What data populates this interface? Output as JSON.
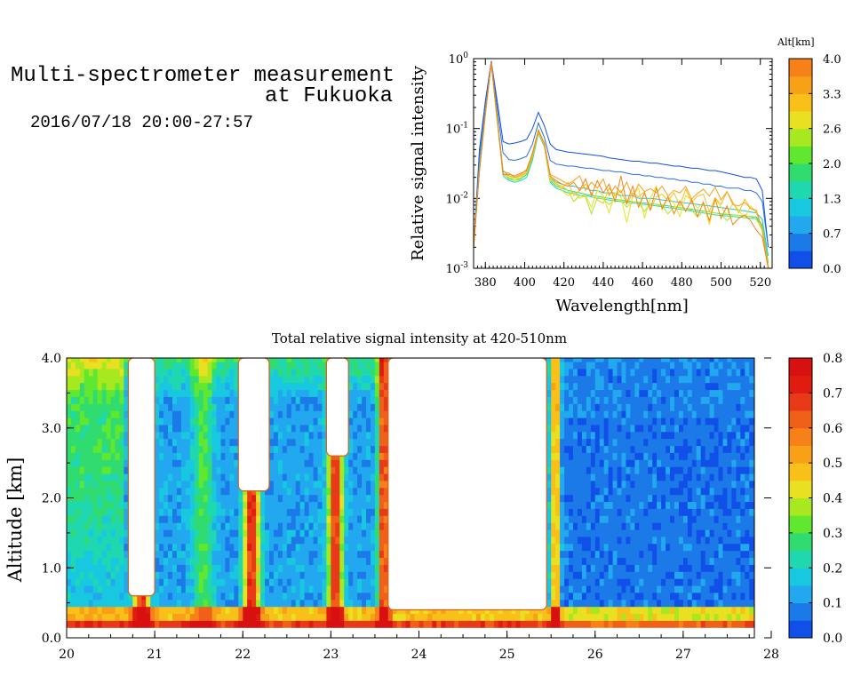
{
  "header": {
    "line1": "Multi-spectrometer measurement",
    "line2": "at Fukuoka",
    "line3": "2016/07/18 20:00-27:57"
  },
  "chart_data": [
    {
      "type": "line",
      "xlabel": "Wavelength[nm]",
      "ylabel": "Relative signal intensity",
      "yscale": "log",
      "xlim": [
        374,
        526
      ],
      "ylim": [
        0.001,
        1
      ],
      "x_ticks": [
        "380",
        "400",
        "420",
        "440",
        "460",
        "480",
        "500",
        "520"
      ],
      "y_ticks": [
        {
          "base": "10",
          "exp": "-3"
        },
        {
          "base": "10",
          "exp": "-2"
        },
        {
          "base": "10",
          "exp": "-1"
        },
        {
          "base": "10",
          "exp": "0"
        }
      ],
      "colorbar": {
        "title": "Alt[km]",
        "tick_labels": [
          "0.0",
          "0.7",
          "1.3",
          "2.0",
          "2.6",
          "3.3",
          "4.0"
        ],
        "colors": [
          "#1050e8",
          "#1c7ae8",
          "#22a8ee",
          "#18c8e0",
          "#20d8b0",
          "#30dc70",
          "#60e830",
          "#a8e820",
          "#e8e020",
          "#f8c018",
          "#f8a018",
          "#f88018"
        ]
      },
      "x": [
        374,
        377,
        380,
        383,
        386,
        389,
        392,
        395,
        398,
        401,
        404,
        407,
        410,
        413,
        416,
        419,
        422,
        425,
        428,
        431,
        434,
        437,
        440,
        443,
        446,
        449,
        452,
        455,
        458,
        461,
        464,
        467,
        470,
        473,
        476,
        479,
        482,
        485,
        488,
        491,
        494,
        497,
        500,
        503,
        506,
        509,
        512,
        515,
        518,
        521,
        524
      ],
      "series": [
        {
          "altitude": 0.2,
          "color": "#1050e8",
          "values": [
            0.002,
            0.05,
            0.25,
            0.92,
            0.25,
            0.065,
            0.06,
            0.062,
            0.065,
            0.07,
            0.1,
            0.17,
            0.11,
            0.06,
            0.05,
            0.048,
            0.046,
            0.045,
            0.044,
            0.043,
            0.042,
            0.041,
            0.04,
            0.038,
            0.037,
            0.036,
            0.035,
            0.034,
            0.034,
            0.033,
            0.032,
            0.032,
            0.031,
            0.03,
            0.029,
            0.029,
            0.028,
            0.027,
            0.027,
            0.026,
            0.025,
            0.025,
            0.024,
            0.023,
            0.022,
            0.021,
            0.02,
            0.02,
            0.019,
            0.013,
            0.002
          ]
        },
        {
          "altitude": 0.5,
          "color": "#2a6ee0",
          "values": [
            0.002,
            0.04,
            0.2,
            0.9,
            0.2,
            0.045,
            0.036,
            0.035,
            0.037,
            0.04,
            0.06,
            0.12,
            0.075,
            0.035,
            0.031,
            0.03,
            0.029,
            0.029,
            0.028,
            0.027,
            0.027,
            0.026,
            0.025,
            0.025,
            0.024,
            0.024,
            0.023,
            0.022,
            0.022,
            0.021,
            0.021,
            0.02,
            0.02,
            0.019,
            0.019,
            0.018,
            0.018,
            0.017,
            0.017,
            0.016,
            0.016,
            0.015,
            0.015,
            0.014,
            0.014,
            0.014,
            0.013,
            0.013,
            0.012,
            0.009,
            0.002
          ]
        },
        {
          "altitude": 1.0,
          "color": "#18c8e0",
          "values": [
            0.002,
            0.03,
            0.18,
            0.88,
            0.15,
            0.025,
            0.021,
            0.02,
            0.021,
            0.024,
            0.04,
            0.095,
            0.06,
            0.02,
            0.017,
            0.016,
            0.015,
            0.015,
            0.014,
            0.014,
            0.013,
            0.013,
            0.012,
            0.012,
            0.012,
            0.011,
            0.011,
            0.011,
            0.01,
            0.01,
            0.01,
            0.0098,
            0.0095,
            0.0093,
            0.009,
            0.0088,
            0.0086,
            0.0084,
            0.0082,
            0.008,
            0.0078,
            0.0076,
            0.0074,
            0.0072,
            0.007,
            0.0068,
            0.0066,
            0.0064,
            0.0062,
            0.005,
            0.0015
          ]
        },
        {
          "altitude": 1.5,
          "color": "#20d8b0",
          "values": [
            0.002,
            0.025,
            0.16,
            0.86,
            0.13,
            0.021,
            0.018,
            0.017,
            0.018,
            0.02,
            0.035,
            0.085,
            0.055,
            0.017,
            0.014,
            0.013,
            0.012,
            0.012,
            0.011,
            0.011,
            0.0105,
            0.01,
            0.0098,
            0.0095,
            0.0092,
            0.009,
            0.0088,
            0.0086,
            0.0084,
            0.0082,
            0.008,
            0.0078,
            0.0076,
            0.0074,
            0.0072,
            0.007,
            0.0068,
            0.0066,
            0.0064,
            0.0062,
            0.006,
            0.0058,
            0.0057,
            0.0056,
            0.0055,
            0.0054,
            0.0053,
            0.0052,
            0.0051,
            0.004,
            0.0012
          ]
        },
        {
          "altitude": 2.0,
          "color": "#30dc70",
          "values": [
            0.002,
            0.025,
            0.16,
            0.86,
            0.13,
            0.023,
            0.019,
            0.018,
            0.019,
            0.022,
            0.038,
            0.088,
            0.057,
            0.018,
            0.015,
            0.014,
            0.013,
            0.0125,
            0.012,
            0.0115,
            0.011,
            0.0107,
            0.0103,
            0.01,
            0.0097,
            0.0095,
            0.0092,
            0.009,
            0.0088,
            0.0086,
            0.0084,
            0.0082,
            0.008,
            0.0078,
            0.0076,
            0.0074,
            0.0072,
            0.007,
            0.0068,
            0.0066,
            0.0064,
            0.0062,
            0.006,
            0.0059,
            0.0058,
            0.0057,
            0.0056,
            0.0055,
            0.0054,
            0.0042,
            0.0012
          ]
        },
        {
          "altitude": 2.6,
          "color": "#a8e820",
          "values": [
            0.002,
            0.025,
            0.16,
            0.86,
            0.13,
            0.022,
            0.02,
            0.019,
            0.02,
            0.023,
            0.04,
            0.09,
            0.058,
            0.019,
            0.016,
            0.015,
            0.013,
            0.009,
            0.011,
            0.0105,
            0.006,
            0.0102,
            0.0098,
            0.0082,
            0.0096,
            0.0094,
            0.0075,
            0.009,
            0.0088,
            0.0065,
            0.0084,
            0.0082,
            0.0078,
            0.006,
            0.0076,
            0.0074,
            0.0072,
            0.0068,
            0.0054,
            0.0066,
            0.0064,
            0.0062,
            0.006,
            0.0048,
            0.0058,
            0.0057,
            0.0056,
            0.0055,
            0.005,
            0.0035,
            0.0011
          ]
        },
        {
          "altitude": 3.0,
          "color": "#e8e020",
          "values": [
            0.002,
            0.025,
            0.16,
            0.86,
            0.13,
            0.022,
            0.02,
            0.018,
            0.02,
            0.023,
            0.04,
            0.09,
            0.058,
            0.018,
            0.017,
            0.013,
            0.011,
            0.012,
            0.01,
            0.011,
            0.0075,
            0.013,
            0.011,
            0.0062,
            0.012,
            0.0105,
            0.0045,
            0.011,
            0.014,
            0.0052,
            0.01,
            0.015,
            0.0068,
            0.0105,
            0.0085,
            0.0055,
            0.011,
            0.0095,
            0.0072,
            0.0088,
            0.0042,
            0.0098,
            0.0075,
            0.0058,
            0.0085,
            0.0068,
            0.0052,
            0.0078,
            0.0062,
            0.0038,
            0.001
          ]
        },
        {
          "altitude": 3.3,
          "color": "#f8c018",
          "values": [
            0.002,
            0.025,
            0.17,
            0.87,
            0.14,
            0.022,
            0.021,
            0.02,
            0.021,
            0.024,
            0.042,
            0.092,
            0.06,
            0.02,
            0.016,
            0.014,
            0.017,
            0.011,
            0.013,
            0.016,
            0.012,
            0.0095,
            0.0085,
            0.014,
            0.011,
            0.013,
            0.0082,
            0.012,
            0.0105,
            0.0125,
            0.0068,
            0.0105,
            0.0115,
            0.0092,
            0.012,
            0.0078,
            0.0135,
            0.0088,
            0.0108,
            0.0115,
            0.0065,
            0.0102,
            0.0082,
            0.0125,
            0.0088,
            0.0062,
            0.0098,
            0.0072,
            0.0065,
            0.0035,
            0.001
          ]
        },
        {
          "altitude": 3.8,
          "color": "#f8a018",
          "values": [
            0.002,
            0.025,
            0.17,
            0.88,
            0.14,
            0.024,
            0.023,
            0.02,
            0.022,
            0.026,
            0.045,
            0.095,
            0.062,
            0.022,
            0.02,
            0.018,
            0.016,
            0.018,
            0.021,
            0.013,
            0.017,
            0.014,
            0.019,
            0.011,
            0.015,
            0.012,
            0.017,
            0.0105,
            0.016,
            0.0125,
            0.0138,
            0.012,
            0.015,
            0.0108,
            0.013,
            0.012,
            0.0148,
            0.0098,
            0.0118,
            0.0135,
            0.0108,
            0.0145,
            0.0095,
            0.0125,
            0.0082,
            0.0078,
            0.0088,
            0.0072,
            0.0068,
            0.0035,
            0.001
          ]
        },
        {
          "altitude": 4.0,
          "color": "#f88018",
          "values": [
            0.002,
            0.025,
            0.17,
            0.88,
            0.14,
            0.022,
            0.022,
            0.021,
            0.023,
            0.025,
            0.044,
            0.094,
            0.061,
            0.021,
            0.018,
            0.016,
            0.015,
            0.017,
            0.013,
            0.019,
            0.011,
            0.018,
            0.012,
            0.016,
            0.009,
            0.021,
            0.0085,
            0.015,
            0.0075,
            0.012,
            0.0068,
            0.014,
            0.0072,
            0.0105,
            0.006,
            0.0092,
            0.0065,
            0.0095,
            0.0055,
            0.0088,
            0.0048,
            0.0098,
            0.0052,
            0.0078,
            0.0042,
            0.0052,
            0.0058,
            0.0048,
            0.0035,
            0.0028,
            0.001
          ]
        }
      ]
    },
    {
      "type": "heatmap",
      "title": "Total relative signal intensity at 420-510nm",
      "xlabel": "",
      "ylabel": "Altitude [km]",
      "xlim": [
        20,
        28
      ],
      "ylim": [
        0,
        4
      ],
      "x_ticks": [
        "20",
        "21",
        "22",
        "23",
        "24",
        "25",
        "26",
        "27",
        "28"
      ],
      "y_ticks": [
        "0.0",
        "1.0",
        "2.0",
        "3.0",
        "4.0"
      ],
      "data_x_range": [
        20,
        27.8
      ],
      "data_y_range": [
        0.15,
        4.0
      ],
      "colorbar": {
        "tick_labels": [
          "0.0",
          "0.1",
          "0.2",
          "0.3",
          "0.4",
          "0.5",
          "0.6",
          "0.7",
          "0.8"
        ],
        "colors": [
          "#1050e8",
          "#1c7ae8",
          "#22a8ee",
          "#18c8e0",
          "#20d8b0",
          "#30dc70",
          "#60e830",
          "#a8e820",
          "#e8e020",
          "#f8c018",
          "#f8a018",
          "#f88018",
          "#f06018",
          "#e83a18",
          "#e01c10",
          "#d81010"
        ]
      },
      "saturated_regions": [
        {
          "x": [
            20.7,
            21.0
          ],
          "y": [
            0.6,
            4.0
          ]
        },
        {
          "x": [
            21.95,
            22.3
          ],
          "y": [
            2.1,
            4.0
          ]
        },
        {
          "x": [
            22.95,
            23.2
          ],
          "y": [
            2.6,
            4.0
          ]
        },
        {
          "x": [
            23.65,
            25.45
          ],
          "y": [
            0.4,
            4.0
          ]
        }
      ]
    }
  ]
}
